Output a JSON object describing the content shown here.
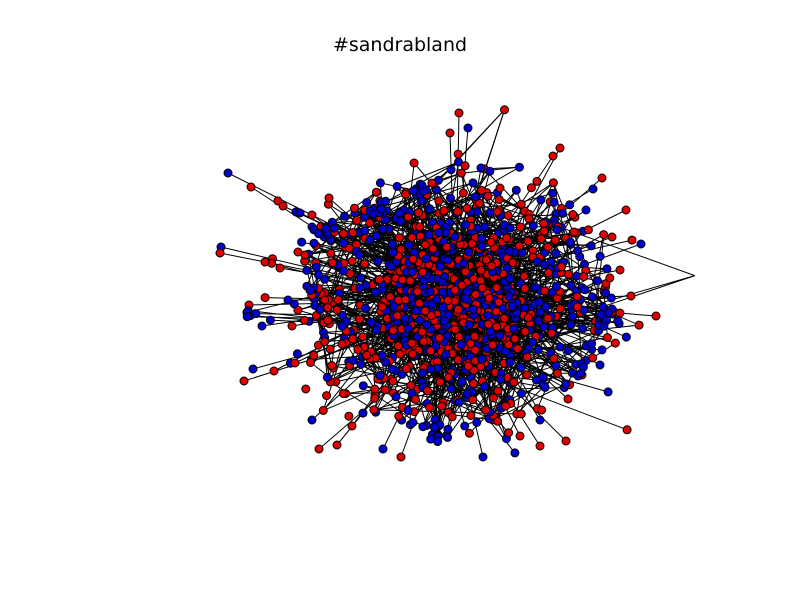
{
  "figure": {
    "title": "#sandrabland"
  },
  "graph": {
    "node_colors": {
      "group_a": "#0000cc",
      "group_b": "#dd0000"
    },
    "node_outline_color": "#000000",
    "edge_color": "#000000"
  }
}
